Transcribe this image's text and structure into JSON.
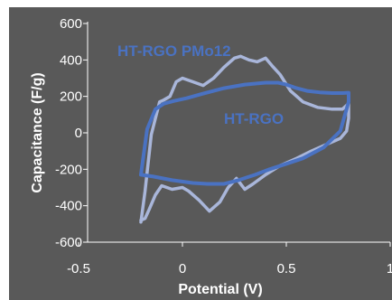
{
  "chart_data": {
    "type": "line",
    "title": "",
    "xlabel": "Potential (V)",
    "ylabel": "Capacitance (F/g)",
    "xlim": [
      -0.5,
      1
    ],
    "ylim": [
      -600,
      600
    ],
    "x_ticks": [
      -0.5,
      0,
      0.5,
      1
    ],
    "x_tick_labels": [
      "-0.5",
      "0",
      "0.5",
      "1"
    ],
    "y_ticks": [
      -600,
      -400,
      -200,
      0,
      200,
      400,
      600
    ],
    "y_tick_labels": [
      "-600",
      "-400",
      "-200",
      "0",
      "200",
      "400",
      "600"
    ],
    "grid": false,
    "legend": "none",
    "background_color": "#595959",
    "axis_color": "#ffffff",
    "series": [
      {
        "name": "HT-RGO PMo12",
        "color": "#a9b6da",
        "x": [
          -0.2,
          -0.18,
          -0.15,
          -0.11,
          -0.09,
          -0.06,
          -0.03,
          0.0,
          0.05,
          0.1,
          0.15,
          0.2,
          0.25,
          0.28,
          0.32,
          0.36,
          0.4,
          0.43,
          0.47,
          0.52,
          0.58,
          0.65,
          0.72,
          0.77,
          0.8,
          0.8,
          0.79,
          0.76,
          0.7,
          0.62,
          0.55,
          0.47,
          0.4,
          0.34,
          0.3,
          0.26,
          0.22,
          0.18,
          0.13,
          0.08,
          0.03,
          0.0,
          -0.05,
          -0.1,
          -0.13,
          -0.16,
          -0.18,
          -0.2
        ],
        "y": [
          -490,
          -320,
          -10,
          170,
          180,
          200,
          280,
          300,
          280,
          260,
          300,
          360,
          410,
          420,
          400,
          390,
          410,
          370,
          320,
          230,
          170,
          140,
          130,
          130,
          160,
          80,
          10,
          -30,
          -60,
          -100,
          -140,
          -180,
          -230,
          -280,
          -310,
          -250,
          -300,
          -380,
          -430,
          -370,
          -320,
          -300,
          -310,
          -290,
          -340,
          -420,
          -470,
          -480
        ]
      },
      {
        "name": "HT-RGO",
        "color": "#4a72c2",
        "x": [
          -0.2,
          -0.17,
          -0.13,
          -0.09,
          -0.04,
          0.02,
          0.1,
          0.2,
          0.3,
          0.4,
          0.46,
          0.5,
          0.55,
          0.6,
          0.66,
          0.72,
          0.77,
          0.8,
          0.8,
          0.76,
          0.68,
          0.58,
          0.5,
          0.42,
          0.35,
          0.27,
          0.2,
          0.12,
          0.05,
          -0.05,
          -0.14,
          -0.2
        ],
        "y": [
          -230,
          20,
          130,
          160,
          175,
          190,
          215,
          245,
          265,
          275,
          275,
          265,
          245,
          230,
          222,
          218,
          218,
          220,
          170,
          10,
          -80,
          -140,
          -170,
          -200,
          -230,
          -260,
          -280,
          -280,
          -275,
          -260,
          -240,
          -230
        ]
      }
    ],
    "annotations": [
      {
        "text": "HT-RGO PMo12",
        "series": 0
      },
      {
        "text": "HT-RGO",
        "series": 1
      }
    ]
  }
}
